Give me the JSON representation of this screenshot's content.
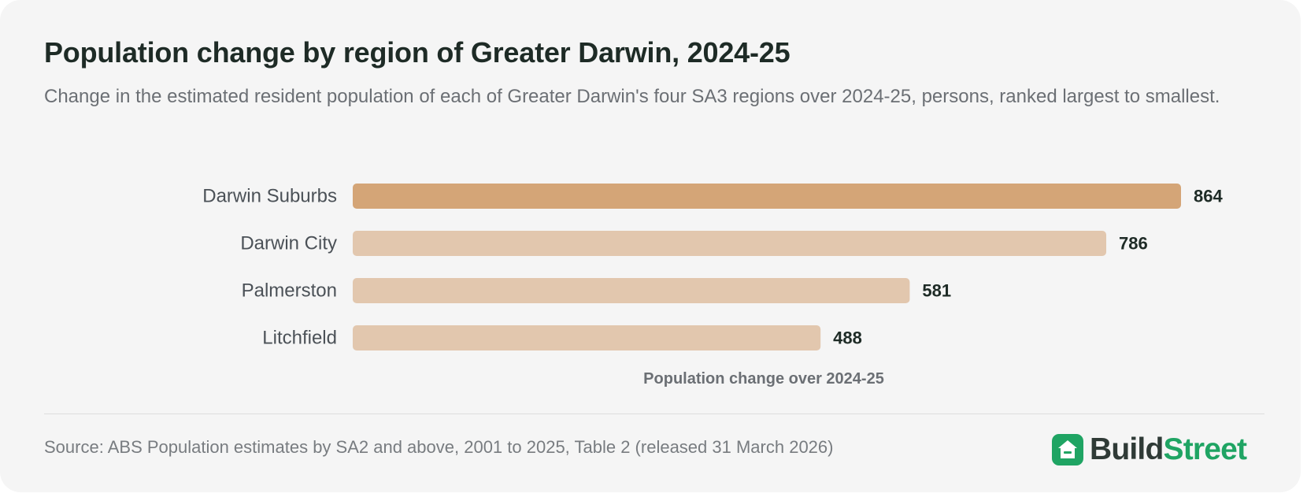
{
  "header": {
    "title": "Population change by region of Greater Darwin, 2024-25",
    "subtitle": "Change in the estimated resident population of each of Greater Darwin's four SA3 regions over 2024-25, persons, ranked largest to smallest."
  },
  "chart_data": {
    "type": "bar",
    "orientation": "horizontal",
    "categories": [
      "Darwin Suburbs",
      "Darwin City",
      "Palmerston",
      "Litchfield"
    ],
    "values": [
      864,
      786,
      581,
      488
    ],
    "data_labels": [
      "864",
      "786",
      "581",
      "488"
    ],
    "highlight_index": 0,
    "xlabel": "Population change over 2024-25",
    "ylabel": "",
    "xlim": [
      0,
      864
    ],
    "grid": false,
    "colors": {
      "highlight": "#d4a577",
      "default": "#e2c7ae",
      "category_label": "#4b5157",
      "value_label": "#1e2b26",
      "axis_label": "#6b6f74"
    }
  },
  "footer": {
    "source": "Source: ABS Population estimates by SA2 and above, 2001 to 2025, Table 2 (released 31 March 2026)",
    "brand_part1": "Build",
    "brand_part2": "Street",
    "brand_icon": "house-icon",
    "brand_colors": {
      "primary": "#2f3a36",
      "accent": "#1fa463"
    }
  }
}
